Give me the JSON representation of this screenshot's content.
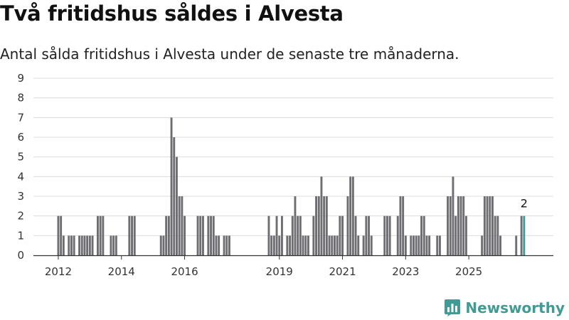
{
  "header": {
    "title": "Två fritidshus såldes i Alvesta",
    "subtitle": "Antal sålda fritidshus i Alvesta under de senaste tre månaderna."
  },
  "branding": {
    "name": "Newsworthy",
    "icon": "newsworthy-chart-icon",
    "color": "#3f9b93"
  },
  "chart_data": {
    "type": "bar",
    "ylim": [
      0,
      9
    ],
    "yticks": [
      0,
      1,
      2,
      3,
      4,
      5,
      6,
      7,
      8,
      9
    ],
    "xticks": [
      "2012",
      "2014",
      "2016",
      "2019",
      "2021",
      "2023",
      "2025"
    ],
    "grid": true,
    "colors": {
      "bar": "#6d6d72",
      "highlight": "#3f9b93"
    },
    "series": [
      {
        "start": "2012-01",
        "values": [
          2,
          2,
          1,
          0,
          1,
          1,
          1,
          0,
          1,
          1,
          1,
          1,
          1,
          1,
          0,
          2,
          2,
          2,
          0,
          0,
          1,
          1,
          1,
          0,
          0,
          0,
          0,
          2,
          2,
          2,
          0,
          0,
          0,
          0,
          0,
          0,
          0,
          0,
          0,
          1,
          1,
          2,
          2,
          7,
          6,
          5,
          3,
          3,
          2,
          0,
          0,
          0,
          0,
          2,
          2,
          2,
          0,
          2,
          2,
          2,
          1,
          1,
          0,
          1,
          1,
          1,
          0,
          0,
          0,
          0,
          0,
          0,
          0,
          0,
          0,
          0,
          0,
          0,
          0,
          0,
          2,
          1,
          1,
          2,
          1,
          2,
          0,
          1,
          1,
          2,
          3,
          2,
          2,
          1,
          1,
          1,
          0,
          2,
          3,
          3,
          4,
          3,
          3,
          1,
          1,
          1,
          1,
          2,
          2,
          0,
          3,
          4,
          4,
          2,
          1,
          0,
          1,
          2,
          2,
          1,
          0,
          0,
          0,
          0,
          2,
          2,
          2,
          0,
          0,
          2,
          3,
          3,
          1,
          0,
          1,
          1,
          1,
          1,
          2,
          2,
          1,
          1,
          0,
          0,
          1,
          1,
          0,
          0,
          3,
          3,
          4,
          2,
          3,
          3,
          3,
          2,
          0,
          0,
          0,
          0,
          0,
          1,
          3,
          3,
          3,
          3,
          2,
          2,
          1,
          0,
          0,
          0,
          0,
          0,
          1,
          0,
          2,
          2
        ]
      }
    ],
    "annotations": [
      {
        "label": "2"
      }
    ]
  }
}
